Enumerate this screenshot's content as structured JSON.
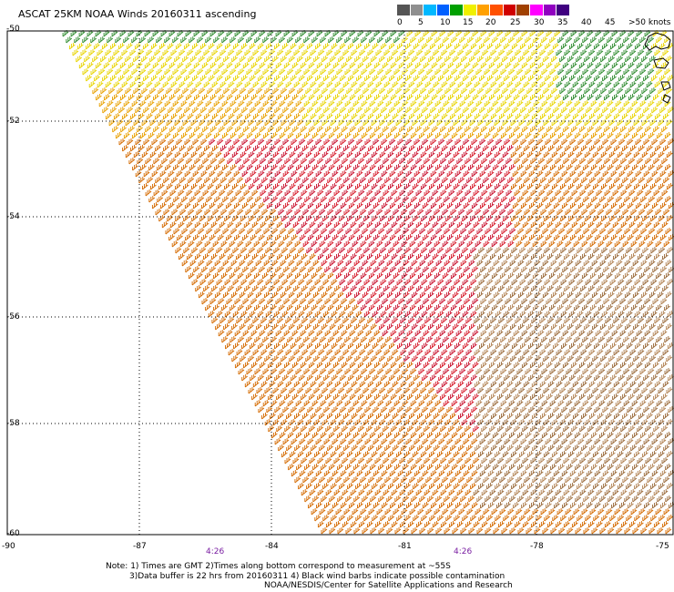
{
  "title": "ASCAT 25KM NOAA Winds 20160311 ascending",
  "scale": {
    "labels": [
      "0",
      "5",
      "10",
      "15",
      "20",
      "25",
      "30",
      "35",
      "40",
      "45",
      ">50 knots"
    ],
    "colors": [
      "#555555",
      "#8f8f8f",
      "#00b8ff",
      "#0060ff",
      "#00a000",
      "#f0f000",
      "#ffa000",
      "#ff5000",
      "#d00000",
      "#a04000",
      "#ff00ff",
      "#9000c0",
      "#400080"
    ]
  },
  "map": {
    "lat_labels": [
      "-50",
      "-52",
      "-54",
      "-56",
      "-58",
      "-60"
    ],
    "lon_labels": [
      "-90",
      "-87",
      "-84",
      "-81",
      "-78",
      "-75"
    ],
    "time_labels": [
      "4:26",
      "4:26"
    ],
    "land_feature": "coastline-fragment"
  },
  "notes": [
    "Note: 1) Times are GMT 2)Times along bottom correspond to measurement at ~55S",
    "3)Data buffer is 22 hrs from 20160311 4) Black wind barbs indicate possible contamination",
    "NOAA/NESDIS/Center for Satellite Applications and Research"
  ],
  "wind_colors": {
    "green": "#2e8b2e",
    "yellow": "#e8d400",
    "orange": "#e8a000",
    "darkorange": "#d46a00",
    "red": "#d61a2a",
    "crimson": "#c8102e",
    "brown": "#9a6a3a",
    "tan": "#b08050"
  }
}
